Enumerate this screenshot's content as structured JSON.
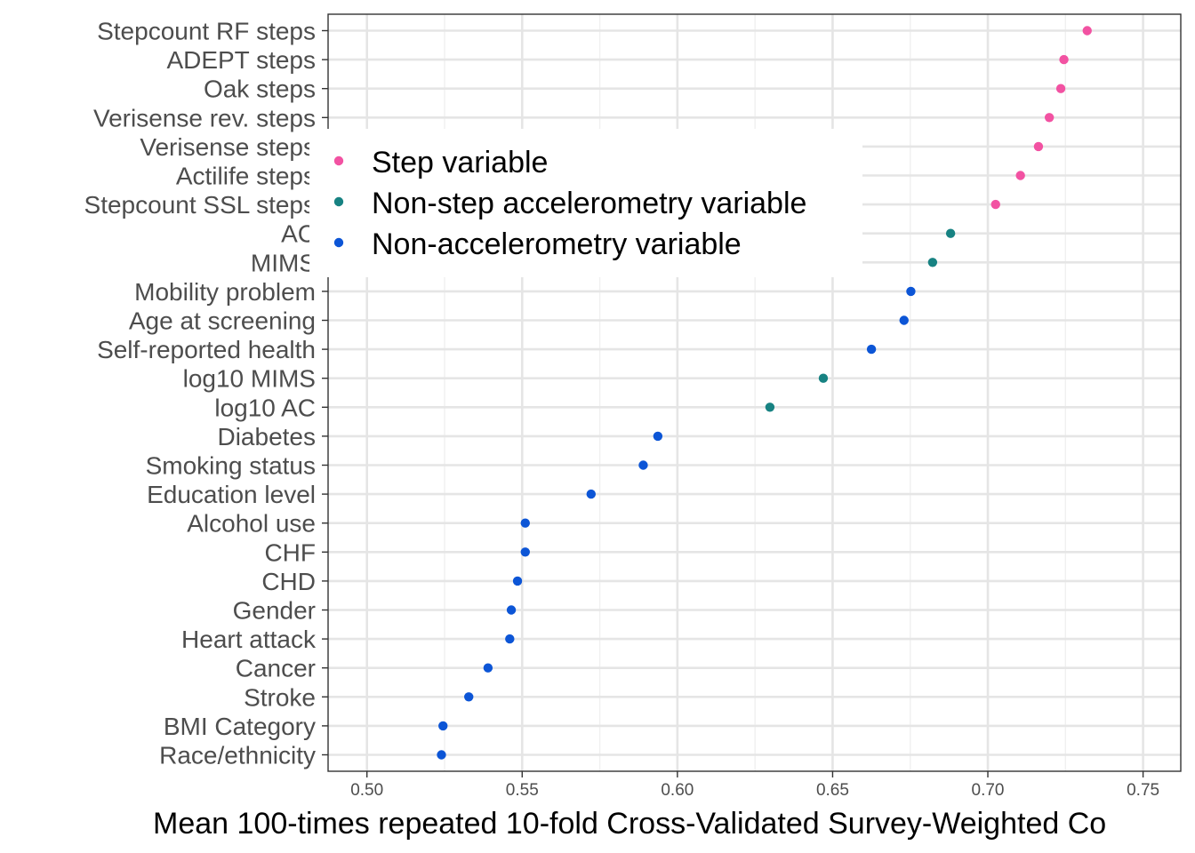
{
  "chart_data": {
    "type": "scatter",
    "xlabel": "Mean 100-times repeated 10-fold Cross-Validated Survey-Weighted Co",
    "xlim": [
      0.488,
      0.763
    ],
    "x_ticks": [
      "0.50",
      "0.55",
      "0.60",
      "0.65",
      "0.70",
      "0.75"
    ],
    "grid": true,
    "legend_position": "top-left-inside",
    "series": [
      {
        "name": "Step variable",
        "color": "#f252a2"
      },
      {
        "name": "Non-step accelerometry variable",
        "color": "#178282"
      },
      {
        "name": "Non-accelerometry variable",
        "color": "#0c55d6"
      }
    ],
    "points": [
      {
        "label": "Stepcount RF steps",
        "value": 0.732,
        "series": "Step variable"
      },
      {
        "label": "ADEPT steps",
        "value": 0.7245,
        "series": "Step variable"
      },
      {
        "label": "Oak steps",
        "value": 0.7235,
        "series": "Step variable"
      },
      {
        "label": "Verisense rev. steps",
        "value": 0.7198,
        "series": "Step variable"
      },
      {
        "label": "Verisense steps",
        "value": 0.7163,
        "series": "Step variable"
      },
      {
        "label": "Actilife steps",
        "value": 0.7105,
        "series": "Step variable"
      },
      {
        "label": "Stepcount SSL steps",
        "value": 0.7025,
        "series": "Step variable"
      },
      {
        "label": "AC",
        "value": 0.688,
        "series": "Non-step accelerometry variable"
      },
      {
        "label": "MIMS",
        "value": 0.6822,
        "series": "Non-step accelerometry variable"
      },
      {
        "label": "Mobility problem",
        "value": 0.6752,
        "series": "Non-accelerometry variable"
      },
      {
        "label": "Age at screening",
        "value": 0.673,
        "series": "Non-accelerometry variable"
      },
      {
        "label": "Self-reported health",
        "value": 0.6625,
        "series": "Non-accelerometry variable"
      },
      {
        "label": "log10 MIMS",
        "value": 0.647,
        "series": "Non-step accelerometry variable"
      },
      {
        "label": "log10 AC",
        "value": 0.6298,
        "series": "Non-step accelerometry variable"
      },
      {
        "label": "Diabetes",
        "value": 0.5937,
        "series": "Non-accelerometry variable"
      },
      {
        "label": "Smoking status",
        "value": 0.589,
        "series": "Non-accelerometry variable"
      },
      {
        "label": "Education level",
        "value": 0.5722,
        "series": "Non-accelerometry variable"
      },
      {
        "label": "Alcohol use",
        "value": 0.551,
        "series": "Non-accelerometry variable"
      },
      {
        "label": "CHF",
        "value": 0.551,
        "series": "Non-accelerometry variable"
      },
      {
        "label": "CHD",
        "value": 0.5485,
        "series": "Non-accelerometry variable"
      },
      {
        "label": "Gender",
        "value": 0.5465,
        "series": "Non-accelerometry variable"
      },
      {
        "label": "Heart attack",
        "value": 0.546,
        "series": "Non-accelerometry variable"
      },
      {
        "label": "Cancer",
        "value": 0.539,
        "series": "Non-accelerometry variable"
      },
      {
        "label": "Stroke",
        "value": 0.5328,
        "series": "Non-accelerometry variable"
      },
      {
        "label": "BMI Category",
        "value": 0.5245,
        "series": "Non-accelerometry variable"
      },
      {
        "label": "Race/ethnicity",
        "value": 0.524,
        "series": "Non-accelerometry variable"
      }
    ]
  }
}
